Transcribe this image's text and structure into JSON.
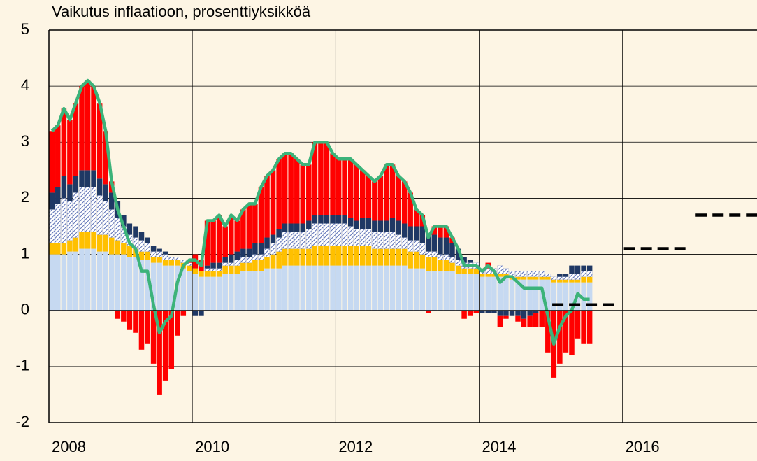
{
  "chart_data": {
    "type": "bar",
    "stacked": true,
    "title": "Vaikutus inflaatioon, prosenttiyksikköä",
    "x": [
      2008,
      2008.083,
      2008.167,
      2008.25,
      2008.333,
      2008.417,
      2008.5,
      2008.583,
      2008.667,
      2008.75,
      2008.833,
      2008.917,
      2009,
      2009.083,
      2009.167,
      2009.25,
      2009.333,
      2009.417,
      2009.5,
      2009.583,
      2009.667,
      2009.75,
      2009.833,
      2009.917,
      2010,
      2010.083,
      2010.167,
      2010.25,
      2010.333,
      2010.417,
      2010.5,
      2010.583,
      2010.667,
      2010.75,
      2010.833,
      2010.917,
      2011,
      2011.083,
      2011.167,
      2011.25,
      2011.333,
      2011.417,
      2011.5,
      2011.583,
      2011.667,
      2011.75,
      2011.833,
      2011.917,
      2012,
      2012.083,
      2012.167,
      2012.25,
      2012.333,
      2012.417,
      2012.5,
      2012.583,
      2012.667,
      2012.75,
      2012.833,
      2012.917,
      2013,
      2013.083,
      2013.167,
      2013.25,
      2013.333,
      2013.417,
      2013.5,
      2013.583,
      2013.667,
      2013.75,
      2013.833,
      2013.917,
      2014,
      2014.083,
      2014.167,
      2014.25,
      2014.333,
      2014.417,
      2014.5,
      2014.583,
      2014.667,
      2014.75,
      2014.833,
      2014.917,
      2015,
      2015.083,
      2015.167,
      2015.25,
      2015.333,
      2015.417,
      2015.5
    ],
    "series": [
      {
        "type": "bar",
        "color": "#c6d9f1",
        "values": [
          1.0,
          1.0,
          1.0,
          1.05,
          1.05,
          1.1,
          1.1,
          1.1,
          1.05,
          1.05,
          1.0,
          1.0,
          1.0,
          0.95,
          0.95,
          0.9,
          0.9,
          0.85,
          0.85,
          0.8,
          0.8,
          0.8,
          0.75,
          0.7,
          0.65,
          0.6,
          0.6,
          0.6,
          0.6,
          0.65,
          0.65,
          0.65,
          0.7,
          0.7,
          0.7,
          0.7,
          0.75,
          0.75,
          0.75,
          0.8,
          0.8,
          0.8,
          0.8,
          0.8,
          0.8,
          0.8,
          0.8,
          0.8,
          0.8,
          0.8,
          0.8,
          0.8,
          0.8,
          0.8,
          0.8,
          0.8,
          0.8,
          0.8,
          0.8,
          0.8,
          0.75,
          0.75,
          0.75,
          0.7,
          0.7,
          0.7,
          0.7,
          0.7,
          0.65,
          0.65,
          0.65,
          0.65,
          0.6,
          0.6,
          0.6,
          0.6,
          0.6,
          0.55,
          0.55,
          0.55,
          0.55,
          0.55,
          0.55,
          0.55,
          0.5,
          0.5,
          0.5,
          0.5,
          0.5,
          0.5,
          0.5
        ]
      },
      {
        "type": "bar",
        "color": "#ffc000",
        "values": [
          0.2,
          0.2,
          0.2,
          0.2,
          0.25,
          0.3,
          0.3,
          0.3,
          0.3,
          0.3,
          0.3,
          0.25,
          0.2,
          0.2,
          0.15,
          0.15,
          0.15,
          0.1,
          0.1,
          0.1,
          0.1,
          0.1,
          0.1,
          0.1,
          0.1,
          0.1,
          0.1,
          0.1,
          0.1,
          0.15,
          0.15,
          0.15,
          0.15,
          0.15,
          0.2,
          0.2,
          0.2,
          0.25,
          0.3,
          0.3,
          0.3,
          0.3,
          0.3,
          0.3,
          0.35,
          0.35,
          0.35,
          0.35,
          0.35,
          0.35,
          0.35,
          0.35,
          0.35,
          0.35,
          0.3,
          0.3,
          0.3,
          0.3,
          0.3,
          0.3,
          0.3,
          0.3,
          0.25,
          0.25,
          0.25,
          0.2,
          0.2,
          0.15,
          0.15,
          0.1,
          0.1,
          0.1,
          0.05,
          0.05,
          0.05,
          0.05,
          0.05,
          0.05,
          0.05,
          0.05,
          0.05,
          0.05,
          0.05,
          0.05,
          0.05,
          0.05,
          0.05,
          0.05,
          0.05,
          0.1,
          0.1
        ]
      },
      {
        "type": "bar",
        "color": "hatch",
        "values": [
          0.6,
          0.7,
          0.8,
          0.7,
          0.8,
          0.8,
          0.8,
          0.8,
          0.7,
          0.6,
          0.5,
          0.4,
          0.3,
          0.2,
          0.2,
          0.2,
          0.15,
          0.1,
          0.1,
          0.1,
          0.05,
          0.05,
          0.05,
          0.05,
          0,
          0,
          0.05,
          0.05,
          0.05,
          0.05,
          0.05,
          0.1,
          0.1,
          0.1,
          0.1,
          0.1,
          0.15,
          0.2,
          0.25,
          0.3,
          0.3,
          0.3,
          0.3,
          0.35,
          0.4,
          0.4,
          0.4,
          0.4,
          0.4,
          0.4,
          0.35,
          0.3,
          0.3,
          0.3,
          0.3,
          0.3,
          0.3,
          0.3,
          0.25,
          0.2,
          0.2,
          0.2,
          0.2,
          0.1,
          0.1,
          0.1,
          0.1,
          0.1,
          0.1,
          0.1,
          0.1,
          0.1,
          0.1,
          0.1,
          0.1,
          0.15,
          0.1,
          0.1,
          0.1,
          0.1,
          0.1,
          0.1,
          0.1,
          0.05,
          0.05,
          0.05,
          0.05,
          0.1,
          0.1,
          0.1,
          0.1
        ]
      },
      {
        "type": "bar",
        "color": "#1f3864",
        "values": [
          0.3,
          0.3,
          0.4,
          0.3,
          0.3,
          0.3,
          0.3,
          0.3,
          0.3,
          0.3,
          0.3,
          0.3,
          0.2,
          0.2,
          0.2,
          0.15,
          0.1,
          0.1,
          0.05,
          0.05,
          0,
          0,
          0,
          0,
          -0.1,
          -0.1,
          0.05,
          0.1,
          0.1,
          0.1,
          0.15,
          0.15,
          0.15,
          0.15,
          0.2,
          0.2,
          0.2,
          0.15,
          0.15,
          0.15,
          0.15,
          0.15,
          0.15,
          0.15,
          0.15,
          0.15,
          0.15,
          0.15,
          0.15,
          0.15,
          0.15,
          0.15,
          0.2,
          0.2,
          0.2,
          0.2,
          0.2,
          0.25,
          0.25,
          0.25,
          0.25,
          0.25,
          0.3,
          0.3,
          0.3,
          0.3,
          0.3,
          0.25,
          0.2,
          0.1,
          0.05,
          0,
          -0.05,
          -0.05,
          -0.05,
          -0.1,
          -0.1,
          -0.1,
          -0.1,
          -0.15,
          -0.1,
          -0.05,
          0,
          0,
          0,
          0.05,
          0.05,
          0.15,
          0.15,
          0.1,
          0.1
        ]
      },
      {
        "type": "bar",
        "color": "#ff0000",
        "values": [
          1.1,
          1.1,
          1.2,
          1.15,
          1.3,
          1.5,
          1.6,
          1.5,
          1.35,
          0.95,
          0.2,
          -0.15,
          -0.2,
          -0.35,
          -0.4,
          -0.7,
          -0.6,
          -0.95,
          -1.5,
          -1.25,
          -1.05,
          -0.45,
          -0.1,
          0.05,
          0.25,
          0.2,
          0.8,
          0.75,
          0.85,
          0.55,
          0.7,
          0.55,
          0.7,
          0.8,
          0.7,
          1.0,
          1.1,
          1.15,
          1.25,
          1.25,
          1.25,
          1.15,
          1.05,
          1.0,
          1.3,
          1.3,
          1.3,
          1.1,
          1.0,
          1.0,
          1.05,
          1.0,
          0.85,
          0.75,
          0.7,
          0.8,
          1.0,
          0.95,
          0.8,
          0.75,
          0.6,
          0.3,
          0.2,
          -0.05,
          0.15,
          0.2,
          0.2,
          0.1,
          0.0,
          -0.15,
          -0.1,
          -0.05,
          0.0,
          0.1,
          0.0,
          -0.2,
          -0.05,
          0.0,
          -0.1,
          -0.15,
          -0.2,
          -0.25,
          -0.3,
          -0.75,
          -1.2,
          -0.95,
          -0.75,
          -0.8,
          -0.5,
          -0.6,
          -0.6
        ]
      },
      {
        "type": "line",
        "color": "#3cb37a",
        "values": [
          3.2,
          3.3,
          3.6,
          3.4,
          3.7,
          4.0,
          4.1,
          4.0,
          3.7,
          3.2,
          2.3,
          1.8,
          1.5,
          1.2,
          1.1,
          0.7,
          0.7,
          0.1,
          -0.4,
          -0.2,
          -0.1,
          0.5,
          0.8,
          0.9,
          0.9,
          0.8,
          1.6,
          1.6,
          1.7,
          1.5,
          1.7,
          1.6,
          1.8,
          1.9,
          1.9,
          2.2,
          2.4,
          2.5,
          2.7,
          2.8,
          2.8,
          2.7,
          2.6,
          2.6,
          3.0,
          3.0,
          3.0,
          2.8,
          2.7,
          2.7,
          2.7,
          2.6,
          2.5,
          2.4,
          2.3,
          2.4,
          2.6,
          2.6,
          2.4,
          2.3,
          2.1,
          1.8,
          1.7,
          1.3,
          1.5,
          1.5,
          1.5,
          1.3,
          1.1,
          0.8,
          0.8,
          0.8,
          0.7,
          0.8,
          0.7,
          0.5,
          0.6,
          0.6,
          0.5,
          0.4,
          0.4,
          0.4,
          0.4,
          -0.1,
          -0.6,
          -0.3,
          -0.1,
          0.0,
          0.3,
          0.2,
          0.2
        ]
      },
      {
        "type": "segments",
        "color": "#000000",
        "x": [
          2015,
          2016,
          2017
        ],
        "values": [
          0.1,
          1.1,
          1.7
        ]
      }
    ],
    "xlim": [
      2008,
      2017.875
    ],
    "xticks": [
      2008,
      2010,
      2012,
      2014,
      2016
    ],
    "ylim": [
      -2,
      5
    ],
    "yticks": [
      -2,
      -1,
      0,
      1,
      2,
      3,
      4,
      5
    ],
    "grid": true
  }
}
